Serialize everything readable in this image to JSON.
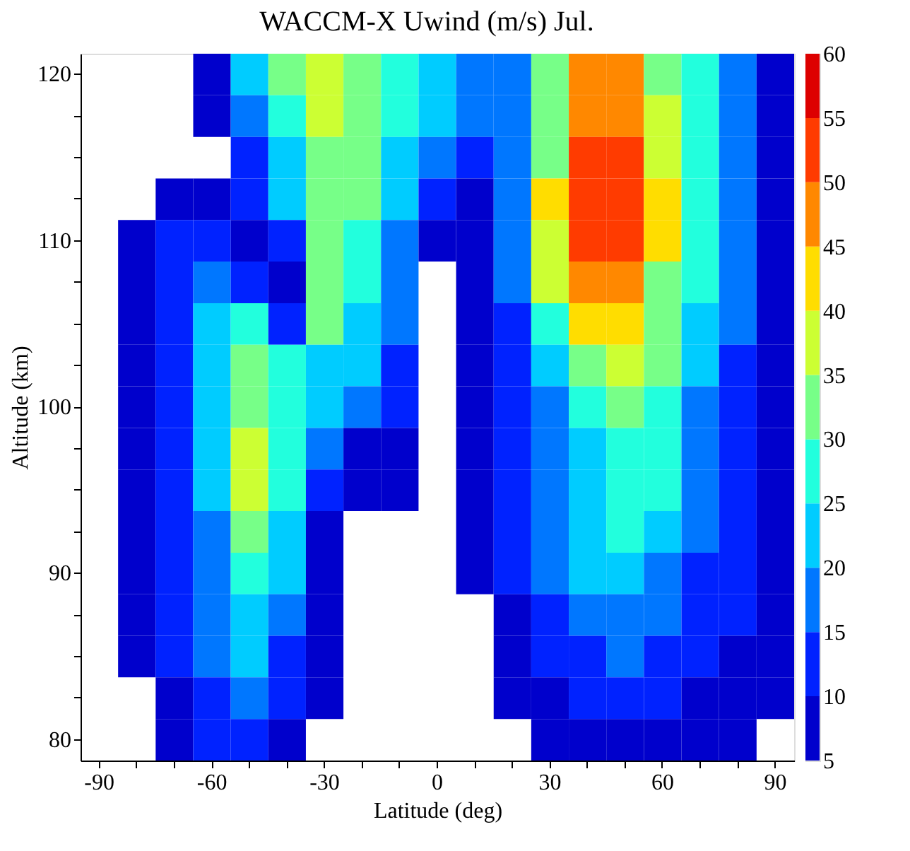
{
  "chart_data": {
    "type": "heatmap",
    "title": "WACCM-X   Uwind (m/s)   Jul.",
    "xlabel": "Latitude (deg)",
    "ylabel": "Altitude (km)",
    "categories": [
      "-90",
      null,
      null,
      "-60",
      null,
      null,
      "-30",
      null,
      null,
      "0",
      null,
      null,
      "30",
      null,
      null,
      "60",
      null,
      null,
      "90"
    ],
    "y_categories": [
      "120",
      null,
      null,
      null,
      "110",
      null,
      null,
      null,
      "100",
      null,
      null,
      null,
      "90",
      null,
      null,
      null,
      "80"
    ],
    "cells": [
      [
        null,
        null,
        null,
        7,
        22,
        32,
        37,
        32,
        27,
        22,
        17,
        17,
        32,
        47,
        47,
        32,
        27,
        17,
        7
      ],
      [
        null,
        null,
        null,
        7,
        17,
        27,
        37,
        32,
        27,
        22,
        17,
        17,
        32,
        47,
        47,
        37,
        27,
        17,
        7
      ],
      [
        null,
        null,
        null,
        null,
        12,
        22,
        32,
        32,
        22,
        17,
        12,
        17,
        32,
        52,
        52,
        37,
        27,
        17,
        7
      ],
      [
        null,
        null,
        7,
        7,
        12,
        22,
        32,
        32,
        22,
        12,
        7,
        17,
        42,
        52,
        52,
        42,
        27,
        17,
        7
      ],
      [
        null,
        7,
        12,
        12,
        7,
        12,
        32,
        27,
        17,
        7,
        7,
        17,
        37,
        52,
        52,
        42,
        27,
        17,
        7
      ],
      [
        null,
        7,
        12,
        17,
        12,
        7,
        32,
        27,
        17,
        null,
        7,
        17,
        37,
        47,
        47,
        32,
        27,
        17,
        7
      ],
      [
        null,
        7,
        12,
        22,
        27,
        12,
        32,
        22,
        17,
        null,
        7,
        12,
        27,
        42,
        42,
        32,
        22,
        17,
        7
      ],
      [
        null,
        7,
        12,
        22,
        32,
        27,
        22,
        22,
        12,
        null,
        7,
        12,
        22,
        32,
        37,
        32,
        22,
        12,
        7
      ],
      [
        null,
        7,
        12,
        22,
        32,
        27,
        22,
        17,
        12,
        null,
        7,
        12,
        17,
        27,
        32,
        27,
        17,
        12,
        7
      ],
      [
        null,
        7,
        12,
        22,
        37,
        27,
        17,
        7,
        7,
        null,
        7,
        12,
        17,
        22,
        27,
        27,
        17,
        12,
        7
      ],
      [
        null,
        7,
        12,
        22,
        37,
        27,
        12,
        7,
        7,
        null,
        7,
        12,
        17,
        22,
        27,
        27,
        17,
        12,
        7
      ],
      [
        null,
        7,
        12,
        17,
        32,
        22,
        7,
        null,
        null,
        null,
        7,
        12,
        17,
        22,
        27,
        22,
        17,
        12,
        7
      ],
      [
        null,
        7,
        12,
        17,
        27,
        22,
        7,
        null,
        null,
        null,
        7,
        12,
        17,
        22,
        22,
        17,
        12,
        12,
        7
      ],
      [
        null,
        7,
        12,
        17,
        22,
        17,
        7,
        null,
        null,
        null,
        null,
        7,
        12,
        17,
        17,
        17,
        12,
        12,
        7
      ],
      [
        null,
        7,
        12,
        17,
        22,
        12,
        7,
        null,
        null,
        null,
        null,
        7,
        12,
        12,
        17,
        12,
        12,
        7,
        7
      ],
      [
        null,
        null,
        7,
        12,
        17,
        12,
        7,
        null,
        null,
        null,
        null,
        7,
        7,
        12,
        12,
        12,
        7,
        7,
        7
      ],
      [
        null,
        null,
        7,
        12,
        12,
        7,
        null,
        null,
        null,
        null,
        null,
        null,
        7,
        7,
        7,
        7,
        7,
        7,
        null
      ]
    ],
    "colors": [
      "#0000cc",
      "#0022ff",
      "#0077ff",
      "#00ccff",
      "#22ffdd",
      "#77ff88",
      "#ccff33",
      "#ffdd00",
      "#ff8800",
      "#ff3b00",
      "#dd0000"
    ],
    "clim": [
      5,
      60
    ],
    "cticks": [
      5,
      10,
      15,
      20,
      25,
      30,
      35,
      40,
      45,
      50,
      55,
      60
    ]
  }
}
